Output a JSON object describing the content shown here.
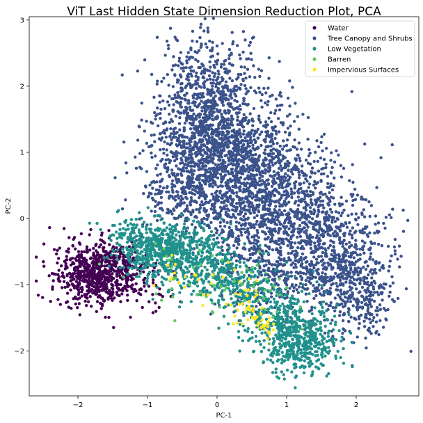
{
  "chart_data": {
    "type": "scatter",
    "title": "ViT Last Hidden State Dimension Reduction Plot, PCA",
    "xlabel": "PC-1",
    "ylabel": "PC-2",
    "xlim": [
      -2.7,
      2.9
    ],
    "ylim": [
      -2.68,
      3.05
    ],
    "xticks": [
      -2,
      -1,
      0,
      1,
      2
    ],
    "yticks": [
      -2,
      -1,
      0,
      1,
      2,
      3
    ],
    "xtick_labels": [
      "−2",
      "−1",
      "0",
      "1",
      "2"
    ],
    "ytick_labels": [
      "−2",
      "−1",
      "0",
      "1",
      "2",
      "3"
    ],
    "grid": false,
    "legend_position": "top-right",
    "series": [
      {
        "name": "Water",
        "color": "#440154",
        "clusters": [
          {
            "cx": -1.75,
            "cy": -0.85,
            "sx": 0.28,
            "sy": 0.22,
            "n": 650
          },
          {
            "cx": -1.35,
            "cy": -0.65,
            "sx": 0.22,
            "sy": 0.2,
            "n": 120
          },
          {
            "cx": -0.9,
            "cy": -1.05,
            "sx": 0.3,
            "sy": 0.2,
            "n": 40
          }
        ]
      },
      {
        "name": "Tree Canopy and Shrubs",
        "color": "#3b528b",
        "clusters": [
          {
            "cx": -0.15,
            "cy": 1.7,
            "sx": 0.35,
            "sy": 0.55,
            "n": 800
          },
          {
            "cx": 0.2,
            "cy": 0.9,
            "sx": 0.55,
            "sy": 0.5,
            "n": 1100
          },
          {
            "cx": 0.9,
            "cy": 0.1,
            "sx": 0.55,
            "sy": 0.5,
            "n": 900
          },
          {
            "cx": 1.75,
            "cy": -0.6,
            "sx": 0.35,
            "sy": 0.45,
            "n": 450
          },
          {
            "cx": 2.1,
            "cy": -1.2,
            "sx": 0.22,
            "sy": 0.35,
            "n": 180
          },
          {
            "cx": 0.95,
            "cy": -0.8,
            "sx": 0.55,
            "sy": 0.35,
            "n": 350
          },
          {
            "cx": -0.4,
            "cy": 0.4,
            "sx": 0.35,
            "sy": 0.35,
            "n": 250
          }
        ]
      },
      {
        "name": "Low Vegetation",
        "color": "#21918c",
        "clusters": [
          {
            "cx": -0.85,
            "cy": -0.45,
            "sx": 0.3,
            "sy": 0.2,
            "n": 450
          },
          {
            "cx": -0.3,
            "cy": -0.65,
            "sx": 0.35,
            "sy": 0.25,
            "n": 350
          },
          {
            "cx": 0.3,
            "cy": -1.0,
            "sx": 0.3,
            "sy": 0.22,
            "n": 200
          },
          {
            "cx": 1.2,
            "cy": -1.85,
            "sx": 0.28,
            "sy": 0.25,
            "n": 480
          },
          {
            "cx": 0.8,
            "cy": -1.45,
            "sx": 0.3,
            "sy": 0.25,
            "n": 200
          },
          {
            "cx": -1.25,
            "cy": -0.25,
            "sx": 0.2,
            "sy": 0.15,
            "n": 60
          }
        ]
      },
      {
        "name": "Barren",
        "color": "#5ec962",
        "clusters": [
          {
            "cx": -0.2,
            "cy": -0.85,
            "sx": 0.45,
            "sy": 0.3,
            "n": 40
          },
          {
            "cx": 0.6,
            "cy": -1.3,
            "sx": 0.3,
            "sy": 0.25,
            "n": 20
          }
        ]
      },
      {
        "name": "Impervious Surfaces",
        "color": "#fde725",
        "clusters": [
          {
            "cx": 0.4,
            "cy": -1.3,
            "sx": 0.15,
            "sy": 0.2,
            "n": 30
          },
          {
            "cx": 0.65,
            "cy": -1.6,
            "sx": 0.1,
            "sy": 0.1,
            "n": 20
          },
          {
            "cx": -0.2,
            "cy": -0.95,
            "sx": 0.35,
            "sy": 0.2,
            "n": 25
          }
        ]
      }
    ]
  }
}
